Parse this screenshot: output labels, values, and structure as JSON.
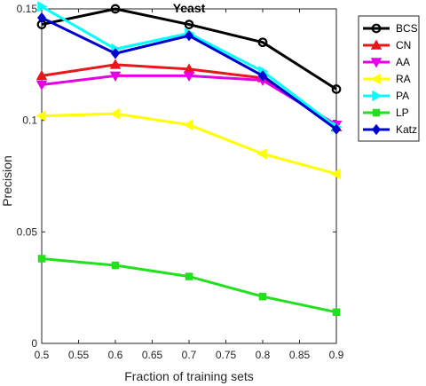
{
  "chart_data": {
    "type": "line",
    "title": "Yeast",
    "xlabel": "Fraction of training sets",
    "ylabel": "Precision",
    "xlim": [
      0.5,
      0.9
    ],
    "ylim": [
      0,
      0.15
    ],
    "xticks": [
      "0.5",
      "0.55",
      "0.6",
      "0.65",
      "0.7",
      "0.75",
      "0.8",
      "0.85",
      "0.9"
    ],
    "xtick_values": [
      0.5,
      0.55,
      0.6,
      0.65,
      0.7,
      0.75,
      0.8,
      0.85,
      0.9
    ],
    "yticks": [
      "0",
      "0.05",
      "0.1",
      "0.15"
    ],
    "ytick_values": [
      0,
      0.05,
      0.1,
      0.15
    ],
    "legend_position": "top-right",
    "grid": false,
    "x": [
      0.5,
      0.6,
      0.7,
      0.8,
      0.9
    ],
    "series": [
      {
        "name": "BCS",
        "color": "#000000",
        "marker": "circle",
        "values": [
          0.143,
          0.15,
          0.143,
          0.135,
          0.114
        ]
      },
      {
        "name": "CN",
        "color": "#e8171b",
        "marker": "triangle-up",
        "values": [
          0.12,
          0.125,
          0.123,
          0.119,
          0.097
        ]
      },
      {
        "name": "AA",
        "color": "#e600e6",
        "marker": "triangle-down",
        "values": [
          0.116,
          0.12,
          0.12,
          0.118,
          0.098
        ]
      },
      {
        "name": "RA",
        "color": "#ffff00",
        "marker": "triangle-left",
        "values": [
          0.102,
          0.103,
          0.098,
          0.085,
          0.076
        ]
      },
      {
        "name": "PA",
        "color": "#00ffff",
        "marker": "triangle-right",
        "values": [
          0.151,
          0.132,
          0.139,
          0.122,
          0.097
        ]
      },
      {
        "name": "LP",
        "color": "#22e01d",
        "marker": "square",
        "values": [
          0.038,
          0.035,
          0.03,
          0.021,
          0.014
        ]
      },
      {
        "name": "Katz",
        "color": "#0000cc",
        "marker": "diamond",
        "values": [
          0.146,
          0.13,
          0.138,
          0.12,
          0.096
        ]
      }
    ]
  }
}
